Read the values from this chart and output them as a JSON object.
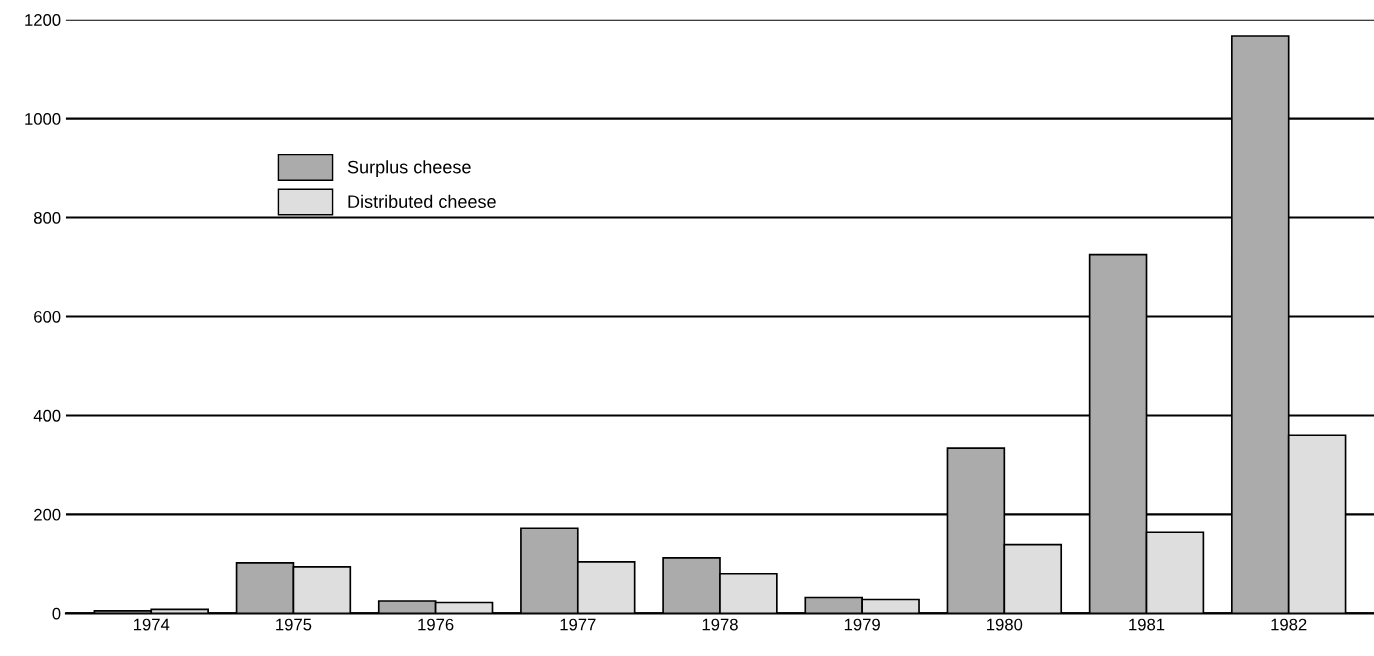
{
  "chart_data": {
    "type": "bar",
    "categories": [
      "1974",
      "1975",
      "1976",
      "1977",
      "1978",
      "1979",
      "1980",
      "1981",
      "1982"
    ],
    "series": [
      {
        "name": "Surplus cheese",
        "color": "#ababab",
        "values": [
          5,
          102,
          25,
          172,
          112,
          32,
          334,
          725,
          1167
        ]
      },
      {
        "name": "Distributed cheese",
        "color": "#dedede",
        "values": [
          8,
          94,
          22,
          104,
          80,
          28,
          139,
          164,
          360
        ]
      }
    ],
    "ylim": [
      0,
      1200
    ],
    "yticks": [
      0,
      200,
      400,
      600,
      800,
      1000,
      1200
    ],
    "grid": "y",
    "legend": "top left"
  }
}
